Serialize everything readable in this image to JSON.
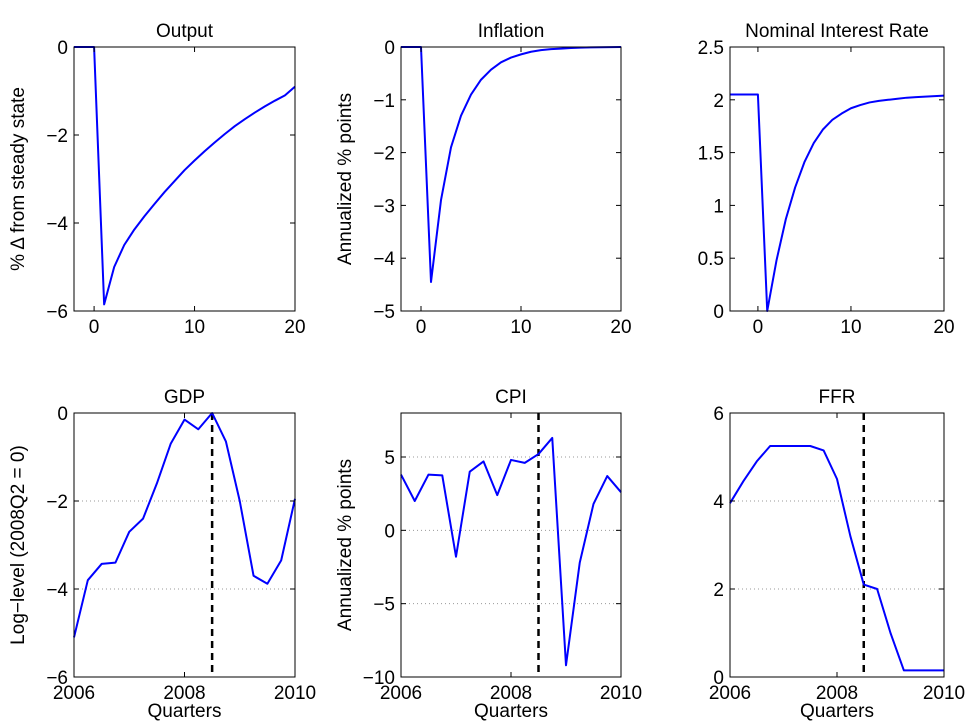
{
  "chart_data": [
    {
      "type": "line",
      "title": "Output",
      "ylabel": "% Δ from steady state",
      "xlabel": "",
      "xlim": [
        -2,
        20
      ],
      "ylim": [
        -6,
        0
      ],
      "xticks": [
        0,
        10,
        20
      ],
      "yticks": [
        -6,
        -4,
        -2,
        0
      ],
      "grid": false,
      "series": [
        {
          "color": "#0000ff",
          "x": [
            -2,
            -1,
            0,
            1,
            2,
            3,
            4,
            5,
            6,
            7,
            8,
            9,
            10,
            11,
            12,
            13,
            14,
            15,
            16,
            17,
            18,
            19,
            20
          ],
          "y": [
            0,
            0,
            0,
            -5.85,
            -5.0,
            -4.5,
            -4.15,
            -3.85,
            -3.57,
            -3.3,
            -3.05,
            -2.8,
            -2.58,
            -2.37,
            -2.17,
            -1.98,
            -1.8,
            -1.64,
            -1.49,
            -1.35,
            -1.22,
            -1.1,
            -0.9
          ]
        }
      ]
    },
    {
      "type": "line",
      "title": "Inflation",
      "ylabel": "Annualized % points",
      "xlabel": "",
      "xlim": [
        -2,
        20
      ],
      "ylim": [
        -5,
        0
      ],
      "xticks": [
        0,
        10,
        20
      ],
      "yticks": [
        -5,
        -4,
        -3,
        -2,
        -1,
        0
      ],
      "grid": false,
      "series": [
        {
          "color": "#0000ff",
          "x": [
            -2,
            -1,
            0,
            1,
            2,
            3,
            4,
            5,
            6,
            7,
            8,
            9,
            10,
            11,
            12,
            13,
            14,
            15,
            16,
            17,
            18,
            19,
            20
          ],
          "y": [
            0,
            0,
            0,
            -4.45,
            -2.9,
            -1.9,
            -1.3,
            -0.9,
            -0.62,
            -0.43,
            -0.29,
            -0.2,
            -0.14,
            -0.09,
            -0.06,
            -0.04,
            -0.03,
            -0.02,
            -0.012,
            -0.008,
            -0.005,
            -0.003,
            0
          ]
        }
      ]
    },
    {
      "type": "line",
      "title": "Nominal Interest Rate",
      "ylabel": "",
      "xlabel": "",
      "xlim": [
        -3,
        20
      ],
      "ylim": [
        0,
        2.5
      ],
      "xticks": [
        0,
        10,
        20
      ],
      "yticks": [
        0,
        0.5,
        1,
        1.5,
        2,
        2.5
      ],
      "grid": false,
      "series": [
        {
          "color": "#0000ff",
          "x": [
            -3,
            -2,
            -1,
            0,
            1,
            2,
            3,
            4,
            5,
            6,
            7,
            8,
            9,
            10,
            11,
            12,
            13,
            14,
            15,
            16,
            17,
            18,
            19,
            20
          ],
          "y": [
            2.05,
            2.05,
            2.05,
            2.05,
            0,
            0.48,
            0.87,
            1.17,
            1.41,
            1.59,
            1.72,
            1.81,
            1.87,
            1.92,
            1.95,
            1.975,
            1.99,
            2.0,
            2.01,
            2.02,
            2.025,
            2.03,
            2.035,
            2.04
          ]
        }
      ]
    },
    {
      "type": "line",
      "title": "GDP",
      "ylabel": "Log−level (2008Q2 = 0)",
      "xlabel": "Quarters",
      "xlim": [
        2006,
        2010
      ],
      "ylim": [
        -6,
        0
      ],
      "xticks": [
        2006,
        2008,
        2010
      ],
      "yticks": [
        -6,
        -4,
        -2,
        0
      ],
      "grid": true,
      "vline": 2008.5,
      "series": [
        {
          "color": "#0000ff",
          "x": [
            2006.0,
            2006.25,
            2006.5,
            2006.75,
            2007.0,
            2007.25,
            2007.5,
            2007.75,
            2008.0,
            2008.25,
            2008.5,
            2008.75,
            2009.0,
            2009.25,
            2009.5,
            2009.75,
            2010.0
          ],
          "y": [
            -5.1,
            -3.8,
            -3.43,
            -3.4,
            -2.7,
            -2.4,
            -1.6,
            -0.7,
            -0.15,
            -0.37,
            0,
            -0.65,
            -2.0,
            -3.7,
            -3.88,
            -3.35,
            -1.95
          ]
        }
      ]
    },
    {
      "type": "line",
      "title": "CPI",
      "ylabel": "Annualized % points",
      "xlabel": "Quarters",
      "xlim": [
        2006,
        2010
      ],
      "ylim": [
        -10,
        8
      ],
      "xticks": [
        2006,
        2008,
        2010
      ],
      "yticks": [
        -10,
        -5,
        0,
        5
      ],
      "grid": true,
      "vline": 2008.5,
      "series": [
        {
          "color": "#0000ff",
          "x": [
            2006.0,
            2006.25,
            2006.5,
            2006.75,
            2007.0,
            2007.25,
            2007.5,
            2007.75,
            2008.0,
            2008.25,
            2008.5,
            2008.75,
            2009.0,
            2009.25,
            2009.5,
            2009.75,
            2010.0
          ],
          "y": [
            3.8,
            2.0,
            3.8,
            3.75,
            -1.8,
            4.0,
            4.7,
            2.4,
            4.8,
            4.6,
            5.2,
            6.3,
            -9.2,
            -2.2,
            1.8,
            3.7,
            2.6
          ]
        }
      ]
    },
    {
      "type": "line",
      "title": "FFR",
      "ylabel": "",
      "xlabel": "Quarters",
      "xlim": [
        2006,
        2010
      ],
      "ylim": [
        0,
        6
      ],
      "xticks": [
        2006,
        2008,
        2010
      ],
      "yticks": [
        0,
        2,
        4,
        6
      ],
      "grid": true,
      "vline": 2008.5,
      "series": [
        {
          "color": "#0000ff",
          "x": [
            2006.0,
            2006.25,
            2006.5,
            2006.75,
            2007.0,
            2007.25,
            2007.5,
            2007.75,
            2008.0,
            2008.25,
            2008.5,
            2008.75,
            2009.0,
            2009.25,
            2009.5,
            2009.75,
            2010.0
          ],
          "y": [
            3.95,
            4.45,
            4.9,
            5.25,
            5.25,
            5.25,
            5.25,
            5.15,
            4.5,
            3.2,
            2.1,
            2.0,
            1.0,
            0.15,
            0.15,
            0.15,
            0.15
          ]
        }
      ]
    }
  ]
}
